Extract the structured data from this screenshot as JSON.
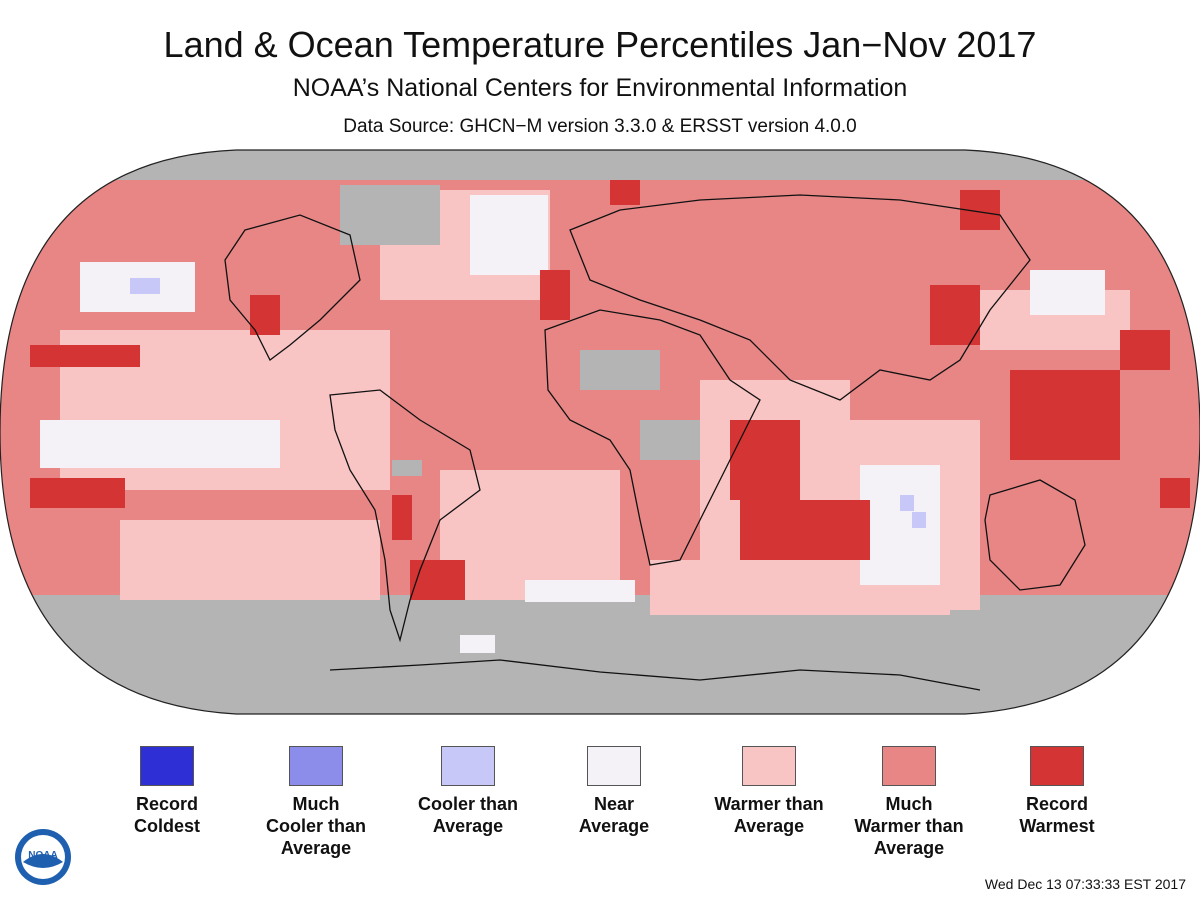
{
  "header": {
    "title": "Land & Ocean Temperature Percentiles Jan−Nov 2017",
    "subtitle": "NOAA’s National Centers for Environmental Information",
    "source": "Data Source: GHCN−M version 3.3.0 & ERSST version 4.0.0"
  },
  "map": {
    "projection": "Robinson",
    "no_data_color": "#b4b4b4",
    "dominant_category": "much_warmer"
  },
  "legend": [
    {
      "id": "record_coldest",
      "label": "Record\nColdest",
      "color": "#2f2fd6"
    },
    {
      "id": "much_cooler",
      "label": "Much\nCooler than\nAverage",
      "color": "#8c8cea"
    },
    {
      "id": "cooler",
      "label": "Cooler than\nAverage",
      "color": "#c8c8f8"
    },
    {
      "id": "near",
      "label": "Near\nAverage",
      "color": "#f4f2f6"
    },
    {
      "id": "warmer",
      "label": "Warmer than\nAverage",
      "color": "#f8c4c4"
    },
    {
      "id": "much_warmer",
      "label": "Much\nWarmer than\nAverage",
      "color": "#e88686"
    },
    {
      "id": "record_warmest",
      "label": "Record\nWarmest",
      "color": "#d43434"
    }
  ],
  "logo": {
    "text": "NOAA"
  },
  "footer": {
    "timestamp": "Wed Dec 13 07:33:33 EST 2017"
  }
}
